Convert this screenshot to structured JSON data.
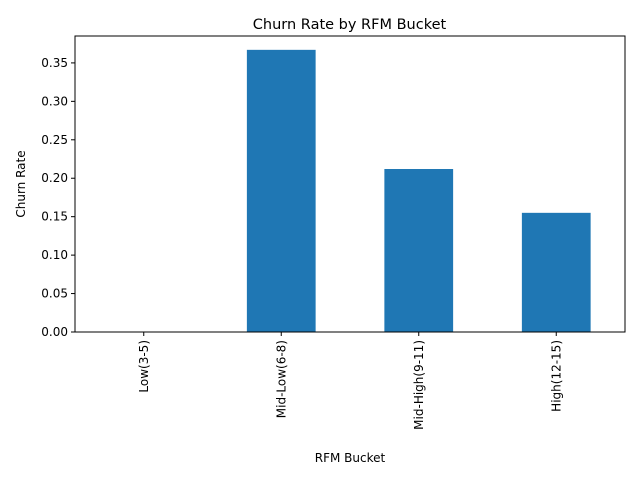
{
  "chart_data": {
    "type": "bar",
    "title": "Churn Rate by RFM Bucket",
    "xlabel": "RFM Bucket",
    "ylabel": "Churn Rate",
    "categories": [
      "Low(3-5)",
      "Mid-Low(6-8)",
      "Mid-High(9-11)",
      "High(12-15)"
    ],
    "series": [
      {
        "values": [
          0.0,
          0.367,
          0.212,
          0.155
        ]
      }
    ],
    "ylim": [
      0,
      0.385
    ],
    "yticks": [
      "0.00",
      "0.05",
      "0.10",
      "0.15",
      "0.20",
      "0.25",
      "0.30",
      "0.35"
    ],
    "bar_color": "#1f77b4",
    "grid": false,
    "legend": "none"
  }
}
